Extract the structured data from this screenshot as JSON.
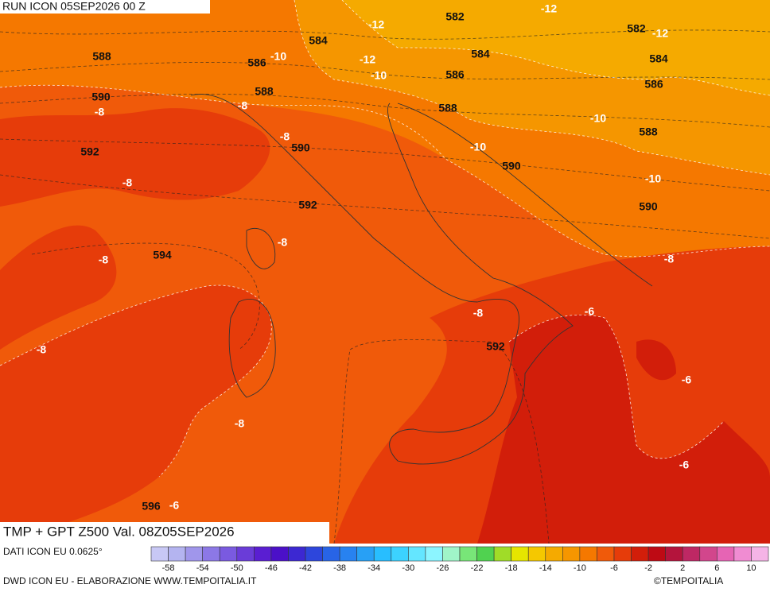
{
  "header": {
    "title": "RUN ICON 05SEP2026 00 Z"
  },
  "map": {
    "contour_labels": [
      582,
      -12,
      -12,
      584,
      582,
      -12,
      588,
      586,
      -10,
      -12,
      584,
      584,
      -10,
      586,
      586,
      590,
      -8,
      588,
      -8,
      588,
      -10,
      588,
      -8,
      590,
      -10,
      592,
      590,
      -8,
      -10,
      592,
      590,
      -8,
      594,
      -8,
      -8,
      -8,
      -6,
      -8,
      592,
      -6,
      -8,
      -6,
      596,
      -6
    ]
  },
  "footer": {
    "title": "TMP + GPT Z500 Val. 08Z05SEP2026",
    "source": "DATI ICON EU 0.0625°",
    "credit": "DWD ICON EU - ELABORAZIONE WWW.TEMPOITALIA.IT",
    "copyright": "©TEMPOITALIA"
  },
  "colorbar": {
    "ticks": [
      -58,
      -54,
      -50,
      -46,
      -42,
      -38,
      -34,
      -30,
      -26,
      -22,
      -18,
      -14,
      -10,
      -6,
      -2,
      2,
      6,
      10
    ],
    "colors": [
      "#c8c8f5",
      "#b4b4f0",
      "#a096eb",
      "#8c78e6",
      "#7a5ae0",
      "#6a3cd8",
      "#5a1ed2",
      "#4b10c8",
      "#3c28d2",
      "#2d46dc",
      "#2864e6",
      "#2882f0",
      "#28a0f5",
      "#28beff",
      "#3cd2ff",
      "#64e6ff",
      "#8cf5ff",
      "#a0f5c8",
      "#78e678",
      "#50d250",
      "#a0dc28",
      "#e6e600",
      "#f5c800",
      "#f5aa00",
      "#f59600",
      "#f57800",
      "#f05a0a",
      "#e63c0a",
      "#d21e0a",
      "#be0a14",
      "#b4143c",
      "#be2864",
      "#d2468c",
      "#e664b4",
      "#f08cd2",
      "#f5b4e6"
    ]
  }
}
